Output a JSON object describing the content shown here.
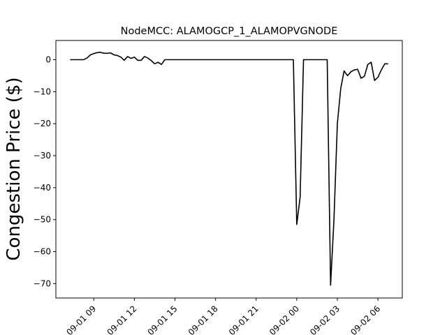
{
  "chart_data": {
    "type": "line",
    "title": "NodeMCC: ALAMOGCP_1_ALAMOPVGNODE",
    "xlabel": "",
    "ylabel": "Congestion Price ($)",
    "x_unit": "hours since 2022-09-01 00:00",
    "xlim": [
      6.2,
      31.8
    ],
    "ylim": [
      -74.5,
      6
    ],
    "grid": false,
    "line_color": "#000000",
    "x_ticks": [
      {
        "value": 9,
        "label": "09-01 09"
      },
      {
        "value": 12,
        "label": "09-01 12"
      },
      {
        "value": 15,
        "label": "09-01 15"
      },
      {
        "value": 18,
        "label": "09-01 18"
      },
      {
        "value": 21,
        "label": "09-01 21"
      },
      {
        "value": 24,
        "label": "09-02 00"
      },
      {
        "value": 27,
        "label": "09-02 03"
      },
      {
        "value": 30,
        "label": "09-02 06"
      }
    ],
    "y_ticks": [
      {
        "value": 0,
        "label": "0"
      },
      {
        "value": -10,
        "label": "−10"
      },
      {
        "value": -20,
        "label": "−20"
      },
      {
        "value": -30,
        "label": "−30"
      },
      {
        "value": -40,
        "label": "−40"
      },
      {
        "value": -50,
        "label": "−50"
      },
      {
        "value": -60,
        "label": "−60"
      },
      {
        "value": -70,
        "label": "−70"
      }
    ],
    "series": [
      {
        "name": "",
        "x": [
          7.25,
          8.25,
          8.5,
          8.75,
          9.0,
          9.25,
          9.5,
          9.75,
          10.0,
          10.25,
          10.5,
          10.75,
          11.0,
          11.25,
          11.5,
          11.75,
          12.0,
          12.25,
          12.5,
          12.75,
          13.0,
          13.25,
          13.5,
          13.75,
          14.0,
          14.25,
          14.5,
          14.75,
          23.75,
          24.0,
          24.25,
          24.5,
          26.25,
          26.5,
          26.75,
          27.0,
          27.25,
          27.5,
          27.75,
          28.0,
          28.25,
          28.5,
          28.75,
          29.0,
          29.25,
          29.5,
          29.75,
          30.0,
          30.25,
          30.5,
          30.75
        ],
        "y": [
          0,
          0,
          0.5,
          1.5,
          1.9,
          2.2,
          2.3,
          2.0,
          2.0,
          2.1,
          1.5,
          1.3,
          0.8,
          -0.2,
          1.0,
          0.4,
          0.8,
          -0.2,
          -0.2,
          1.0,
          0.5,
          -0.3,
          -1.3,
          -0.8,
          -1.5,
          0,
          0,
          0,
          0,
          -51.5,
          -43,
          0,
          0,
          -70.5,
          -50,
          -20,
          -9,
          -3.5,
          -5,
          -3.8,
          -3.2,
          -3.0,
          -5.8,
          -5.2,
          -1.5,
          -0.8,
          -6.5,
          -5.5,
          -3.2,
          -1.3,
          -1.3
        ]
      }
    ]
  }
}
